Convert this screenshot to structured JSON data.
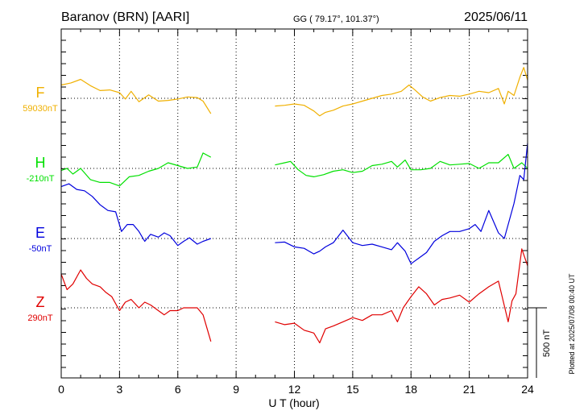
{
  "header": {
    "station": "Baranov (BRN)  [AARI]",
    "coords": "GG ( 79.17°, 101.37°)",
    "date": "2025/06/11"
  },
  "chart_data": {
    "type": "line",
    "xlabel": "U T (hour)",
    "xlim": [
      0,
      24
    ],
    "x_ticks": [
      "0",
      "3",
      "6",
      "9",
      "12",
      "15",
      "18",
      "21",
      "24"
    ],
    "scale_label": "500 nT",
    "plotted_note": "Plotted at 2025/07/08 00:40 UT",
    "colors": {
      "F": "#f0b000",
      "H": "#00e000",
      "E": "#0000dd",
      "Z": "#e00000",
      "frame": "#000000"
    },
    "series": [
      {
        "name": "F",
        "baseline_label": "59030nT",
        "color": "#f0b000",
        "x": [
          0,
          0.5,
          1,
          1.5,
          2,
          2.5,
          3,
          3.3,
          3.6,
          4,
          4.5,
          5,
          5.5,
          6,
          6.5,
          7,
          7.3,
          7.7,
          11,
          11.5,
          12,
          12.5,
          13,
          13.3,
          13.6,
          14,
          14.5,
          15,
          15.5,
          16,
          16.5,
          17,
          17.5,
          17.9,
          18.2,
          18.6,
          19,
          19.5,
          20,
          20.5,
          21,
          21.5,
          22,
          22.5,
          22.8,
          23,
          23.3,
          23.6,
          23.8,
          24
        ],
        "y": [
          95,
          110,
          135,
          90,
          55,
          60,
          40,
          -5,
          50,
          -25,
          25,
          -20,
          -15,
          -5,
          10,
          5,
          -20,
          -110,
          -55,
          -50,
          -40,
          -50,
          -90,
          -125,
          -100,
          -85,
          -55,
          -40,
          -20,
          0,
          20,
          30,
          50,
          95,
          60,
          10,
          -20,
          5,
          20,
          15,
          30,
          50,
          40,
          70,
          -40,
          50,
          20,
          150,
          220,
          130
        ]
      },
      {
        "name": "H",
        "baseline_label": "-210nT",
        "color": "#00e000",
        "x": [
          0,
          0.3,
          0.6,
          1,
          1.5,
          2,
          2.5,
          3,
          3.5,
          4,
          4.5,
          5,
          5.5,
          6,
          6.5,
          7,
          7.3,
          7.7,
          11,
          11.5,
          11.8,
          12.2,
          12.6,
          13,
          13.5,
          14,
          14.5,
          15,
          15.5,
          16,
          16.5,
          17,
          17.3,
          17.7,
          18,
          18.5,
          19,
          19.5,
          20,
          20.5,
          21,
          21.5,
          22,
          22.5,
          23,
          23.3,
          23.7,
          24
        ],
        "y": [
          -15,
          0,
          -40,
          0,
          -80,
          -100,
          -100,
          -125,
          -60,
          -50,
          -20,
          0,
          40,
          20,
          0,
          10,
          110,
          80,
          25,
          40,
          50,
          -10,
          -50,
          -60,
          -45,
          -20,
          -10,
          -30,
          -20,
          20,
          30,
          50,
          10,
          60,
          -10,
          -10,
          0,
          50,
          25,
          30,
          35,
          0,
          40,
          40,
          100,
          0,
          40,
          0
        ]
      },
      {
        "name": "E",
        "baseline_label": "-50nT",
        "color": "#0000dd",
        "x": [
          0,
          0.4,
          0.8,
          1.2,
          1.6,
          2,
          2.4,
          2.8,
          3.1,
          3.4,
          3.7,
          4,
          4.3,
          4.6,
          5,
          5.3,
          5.6,
          6,
          6.3,
          6.6,
          7,
          7.3,
          7.7,
          11,
          11.5,
          12,
          12.5,
          13,
          13.3,
          13.6,
          14,
          14.5,
          15,
          15.5,
          16,
          16.5,
          17,
          17.3,
          17.7,
          18,
          18.4,
          18.8,
          19.2,
          19.6,
          20,
          20.5,
          21,
          21.3,
          21.6,
          22,
          22.5,
          22.8,
          23,
          23.3,
          23.6,
          23.8,
          24
        ],
        "y": [
          370,
          390,
          350,
          340,
          300,
          240,
          200,
          190,
          50,
          100,
          100,
          50,
          -20,
          30,
          10,
          40,
          20,
          -50,
          -20,
          5,
          -40,
          -20,
          0,
          -30,
          -25,
          -60,
          -70,
          -110,
          -90,
          -60,
          -30,
          60,
          -30,
          -50,
          -40,
          -60,
          -80,
          -30,
          -90,
          -180,
          -140,
          -100,
          -20,
          20,
          50,
          50,
          70,
          100,
          50,
          200,
          40,
          0,
          100,
          250,
          450,
          420,
          680
        ]
      },
      {
        "name": "Z",
        "baseline_label": "290nT",
        "color": "#e00000",
        "x": [
          0,
          0.3,
          0.6,
          1,
          1.3,
          1.6,
          2,
          2.3,
          2.6,
          3,
          3.3,
          3.6,
          4,
          4.3,
          4.6,
          5,
          5.3,
          5.6,
          6,
          6.3,
          6.6,
          7,
          7.3,
          7.7,
          11,
          11.5,
          12,
          12.5,
          13,
          13.3,
          13.6,
          14,
          14.5,
          15,
          15.5,
          16,
          16.5,
          17,
          17.3,
          17.6,
          18,
          18.4,
          18.8,
          19.2,
          19.6,
          20,
          20.5,
          21,
          21.5,
          22,
          22.5,
          23,
          23.2,
          23.4,
          23.7,
          24
        ],
        "y": [
          240,
          130,
          170,
          270,
          210,
          170,
          150,
          110,
          80,
          -20,
          40,
          60,
          0,
          40,
          20,
          -20,
          -50,
          -20,
          -20,
          0,
          0,
          0,
          -50,
          -240,
          -100,
          -120,
          -110,
          -160,
          -180,
          -250,
          -150,
          -130,
          -100,
          -70,
          -90,
          -50,
          -50,
          -20,
          -100,
          0,
          80,
          150,
          100,
          20,
          60,
          70,
          90,
          40,
          100,
          150,
          190,
          -100,
          50,
          100,
          420,
          300
        ]
      }
    ]
  }
}
